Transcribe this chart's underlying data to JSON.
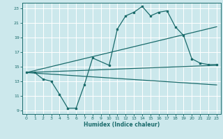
{
  "title": "",
  "xlabel": "Humidex (Indice chaleur)",
  "bg_color": "#cce8ec",
  "line_color": "#1a6b6b",
  "grid_color": "#ffffff",
  "xlim": [
    -0.5,
    23.5
  ],
  "ylim": [
    8.5,
    23.8
  ],
  "xticks": [
    0,
    1,
    2,
    3,
    4,
    5,
    6,
    7,
    8,
    9,
    10,
    11,
    12,
    13,
    14,
    15,
    16,
    17,
    18,
    19,
    20,
    21,
    22,
    23
  ],
  "yticks": [
    9,
    11,
    13,
    15,
    17,
    19,
    21,
    23
  ],
  "series1_x": [
    0,
    1,
    2,
    3,
    4,
    5,
    6,
    7,
    8,
    10,
    11,
    12,
    13,
    14,
    15,
    16,
    17,
    18,
    19,
    20,
    21,
    22,
    23
  ],
  "series1_y": [
    14.2,
    14.2,
    13.3,
    13.0,
    11.2,
    9.3,
    9.3,
    12.5,
    16.2,
    15.2,
    20.2,
    22.0,
    22.5,
    23.3,
    22.0,
    22.5,
    22.7,
    20.5,
    19.3,
    16.1,
    15.5,
    15.3,
    15.3
  ],
  "series2_x": [
    0,
    23
  ],
  "series2_y": [
    14.2,
    20.5
  ],
  "series3_x": [
    0,
    23
  ],
  "series3_y": [
    14.2,
    15.2
  ],
  "series4_x": [
    0,
    23
  ],
  "series4_y": [
    14.2,
    12.5
  ]
}
